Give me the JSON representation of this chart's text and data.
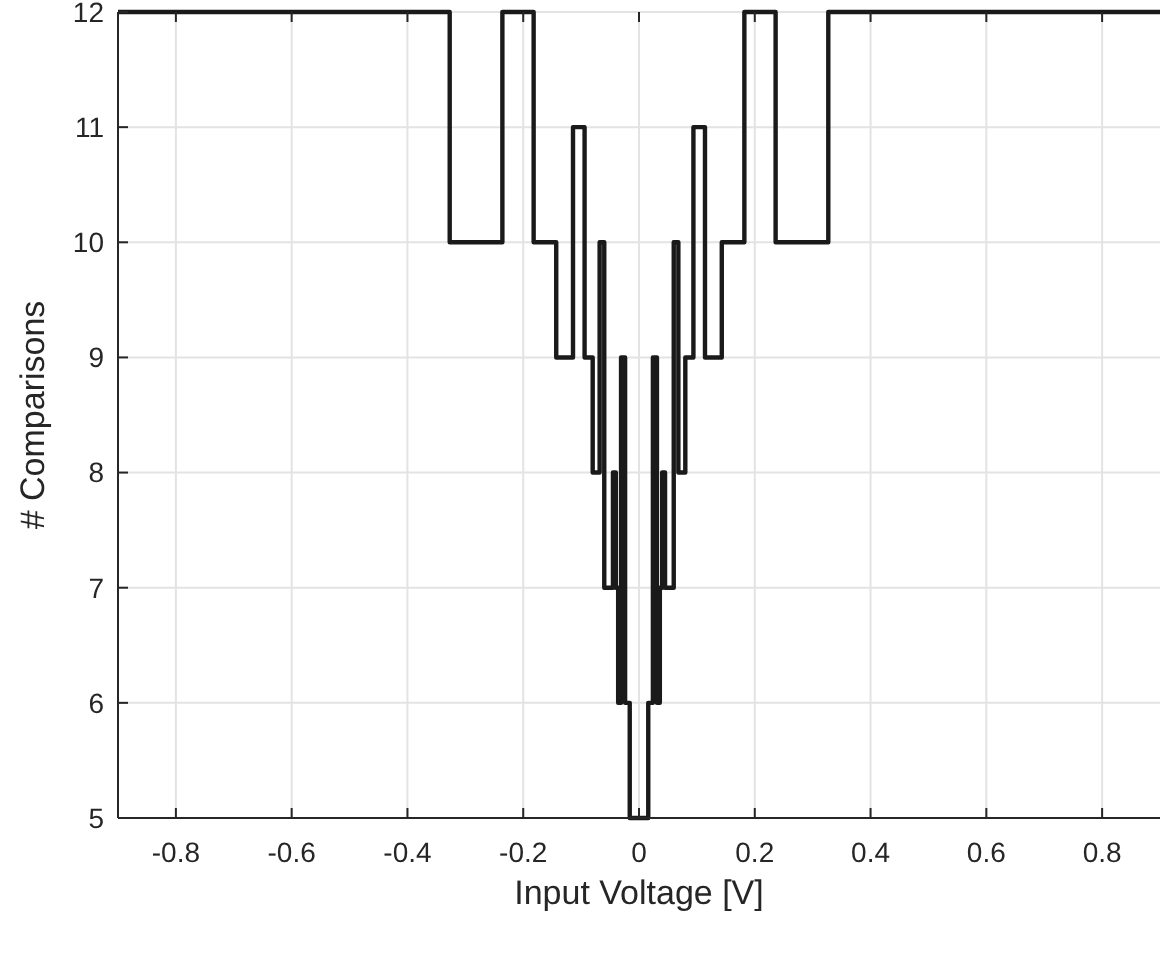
{
  "chart_data": {
    "type": "step",
    "xlabel": "Input Voltage [V]",
    "ylabel": "# Comparisons",
    "xlim": [
      -0.9,
      0.9
    ],
    "xticks": [
      -0.8,
      -0.6,
      -0.4,
      -0.2,
      0,
      0.2,
      0.4,
      0.6,
      0.8
    ],
    "ylim": [
      5,
      12
    ],
    "yticks": [
      5,
      6,
      7,
      8,
      9,
      10,
      11,
      12
    ],
    "grid": true,
    "line_style": "solid",
    "x": [
      -0.9,
      -0.327,
      -0.236,
      -0.182,
      -0.143,
      -0.114,
      -0.094,
      -0.08,
      -0.068,
      -0.06,
      -0.045,
      -0.04,
      -0.036,
      -0.031,
      -0.024,
      -0.016,
      0.016,
      0.024,
      0.031,
      0.036,
      0.04,
      0.045,
      0.06,
      0.068,
      0.08,
      0.094,
      0.114,
      0.143,
      0.182,
      0.236,
      0.327,
      0.9
    ],
    "series": [
      {
        "color": "#1a1a1a",
        "values": [
          12,
          10,
          12,
          10,
          9,
          11,
          9,
          8,
          10,
          7,
          8,
          7,
          6,
          9,
          6,
          5,
          6,
          9,
          6,
          7,
          8,
          7,
          10,
          8,
          9,
          11,
          9,
          10,
          12,
          10,
          12,
          12
        ]
      }
    ]
  }
}
